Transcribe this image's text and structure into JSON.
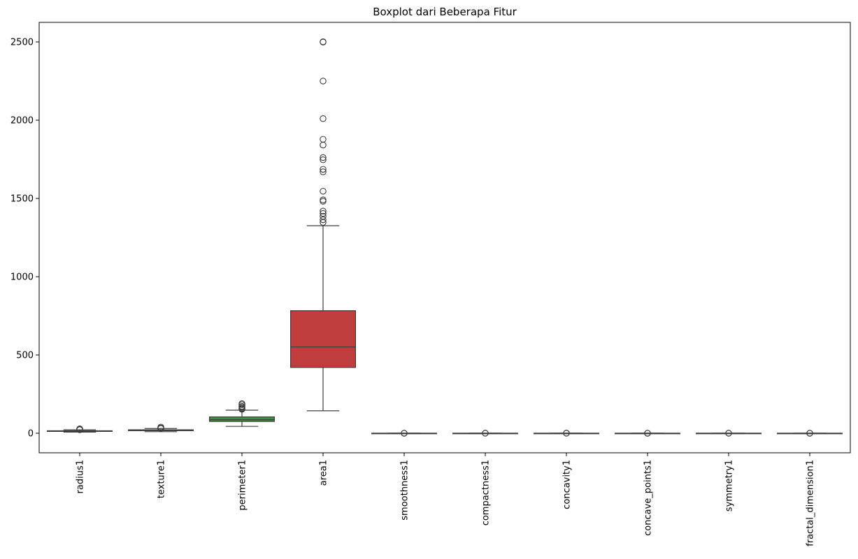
{
  "chart_data": {
    "type": "box",
    "title": "Boxplot dari Beberapa Fitur",
    "xlabel": "",
    "ylabel": "",
    "ylim": [
      -125,
      2625
    ],
    "yticks": [
      0,
      500,
      1000,
      1500,
      2000,
      2500
    ],
    "grid": false,
    "legend": "none",
    "categories": [
      "radius1",
      "texture1",
      "perimeter1",
      "area1",
      "smoothness1",
      "compactness1",
      "concavity1",
      "concave_points1",
      "symmetry1",
      "fractal_dimension1"
    ],
    "colors": [
      "#3a6ea5",
      "#e1812c",
      "#3a923a",
      "#c03d3e",
      "#9372b2",
      "#845b53",
      "#d684bd",
      "#7f7f7f",
      "#a9aa35",
      "#2ebece"
    ],
    "edge_color": "#3c3c3c",
    "boxes": [
      {
        "name": "radius1",
        "whislo": 6.98,
        "q1": 11.7,
        "med": 13.37,
        "q3": 15.78,
        "whishi": 21.9,
        "fliers": [
          22.3,
          23.2,
          24.3,
          25.2,
          27.2,
          28.1
        ]
      },
      {
        "name": "texture1",
        "whislo": 9.71,
        "q1": 16.17,
        "med": 18.84,
        "q3": 21.8,
        "whishi": 30.0,
        "fliers": [
          30.6,
          31.1,
          32.5,
          33.6,
          39.3
        ]
      },
      {
        "name": "perimeter1",
        "whislo": 43.8,
        "q1": 75.2,
        "med": 86.2,
        "q3": 104.1,
        "whishi": 147.3,
        "fliers": [
          152.8,
          155.1,
          158.9,
          166.2,
          171.5,
          182.1,
          188.5
        ]
      },
      {
        "name": "area1",
        "whislo": 143.5,
        "q1": 420.3,
        "med": 551.1,
        "q3": 782.7,
        "whishi": 1326,
        "fliers": [
          1347,
          1364,
          1386,
          1404,
          1419,
          1482,
          1491,
          1546,
          1670,
          1686,
          1747,
          1761,
          1841,
          1878,
          2010,
          2250,
          2499,
          2501
        ]
      },
      {
        "name": "smoothness1",
        "whislo": 0.053,
        "q1": 0.086,
        "med": 0.096,
        "q3": 0.105,
        "whishi": 0.133,
        "fliers": [
          0.145,
          0.163
        ]
      },
      {
        "name": "compactness1",
        "whislo": 0.019,
        "q1": 0.065,
        "med": 0.093,
        "q3": 0.13,
        "whishi": 0.229,
        "fliers": [
          0.28,
          0.345
        ]
      },
      {
        "name": "concavity1",
        "whislo": 0.0,
        "q1": 0.03,
        "med": 0.062,
        "q3": 0.131,
        "whishi": 0.282,
        "fliers": [
          0.31,
          0.427
        ]
      },
      {
        "name": "concave_points1",
        "whislo": 0.0,
        "q1": 0.02,
        "med": 0.034,
        "q3": 0.074,
        "whishi": 0.155,
        "fliers": [
          0.161,
          0.201
        ]
      },
      {
        "name": "symmetry1",
        "whislo": 0.117,
        "q1": 0.162,
        "med": 0.179,
        "q3": 0.196,
        "whishi": 0.246,
        "fliers": [
          0.259,
          0.304
        ]
      },
      {
        "name": "fractal_dimension1",
        "whislo": 0.05,
        "q1": 0.058,
        "med": 0.062,
        "q3": 0.066,
        "whishi": 0.079,
        "fliers": [
          0.082,
          0.097
        ]
      }
    ]
  }
}
